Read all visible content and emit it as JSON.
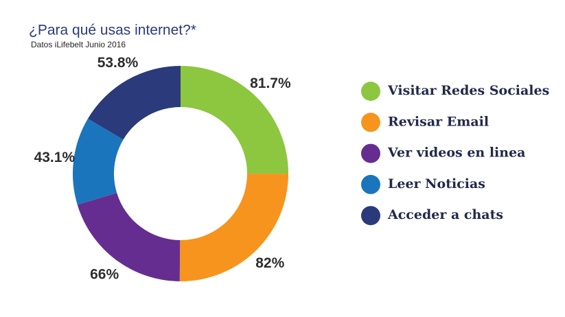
{
  "chart_data": {
    "type": "donut",
    "title": "¿Para qué usas internet?*",
    "subtitle": "Datos iLifebelt Junio 2016",
    "categories": [
      "Visitar Redes Sociales",
      "Revisar Email",
      "Ver videos en linea",
      "Leer Noticias",
      "Acceder a chats"
    ],
    "values": [
      81.7,
      82,
      66,
      43.1,
      53.8
    ],
    "value_labels": [
      "81.7%",
      "82%",
      "66%",
      "43.1%",
      "53.8%"
    ],
    "colors": [
      "#8dc63f",
      "#f7941d",
      "#662d91",
      "#1b75bc",
      "#2b3a7a"
    ],
    "legend": "right"
  }
}
